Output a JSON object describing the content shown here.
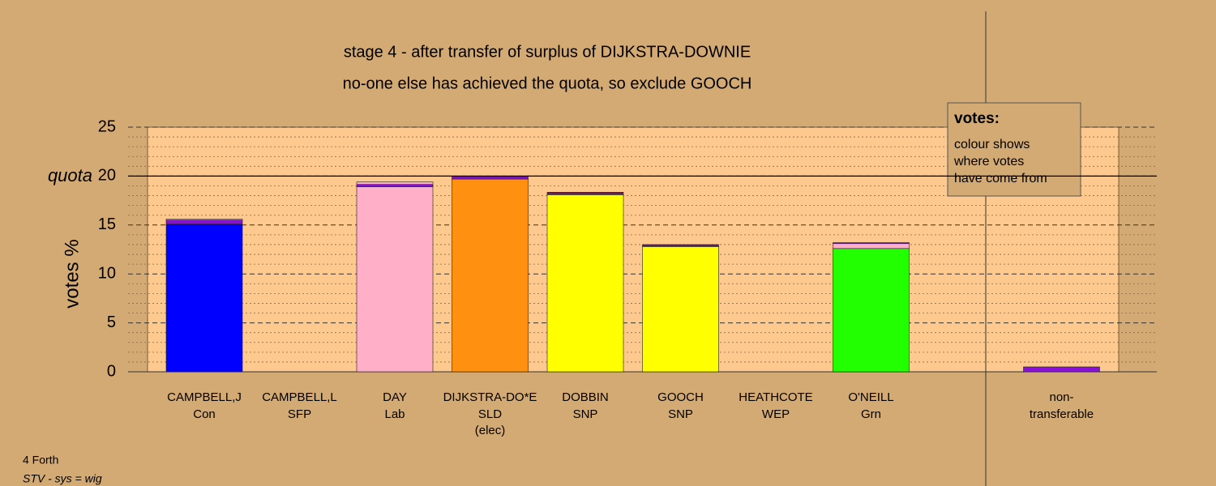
{
  "chart_data": {
    "type": "bar",
    "title": "stage 4 - after transfer of surplus of DIJKSTRA-DOWNIE",
    "subtitle": "no-one else has achieved the quota, so exclude GOOCH",
    "y_label": "votes %",
    "categories": [
      "CAMPBELL,J",
      "CAMPBELL,L",
      "DAY",
      "DIJKSTRA-DO*E",
      "DOBBIN",
      "GOOCH",
      "HEATHCOTE",
      "O'NEILL",
      "non-"
    ],
    "parties": [
      "Con",
      "SFP",
      "Lab",
      "SLD",
      "SNP",
      "SNP",
      "WEP",
      "Grn",
      "transferable"
    ],
    "notes": [
      null,
      null,
      null,
      "(elec)",
      null,
      null,
      null,
      null,
      null
    ],
    "stacks": [
      [
        {
          "color": "#0000ff",
          "value": 15.1
        },
        {
          "color": "#8a10d8",
          "value": 0.4
        },
        {
          "color": "#ffb0c8",
          "value": 0.1
        }
      ],
      [],
      [
        {
          "color": "#ffb0c8",
          "value": 18.9
        },
        {
          "color": "#8a10d8",
          "value": 0.25
        },
        {
          "color": "#ffb0c8",
          "value": 0.25
        }
      ],
      [
        {
          "color": "#ff9010",
          "value": 19.7
        },
        {
          "color": "#8a10d8",
          "value": 0.25
        }
      ],
      [
        {
          "color": "#ffff00",
          "value": 18.1
        },
        {
          "color": "#6a1a6a",
          "value": 0.25
        }
      ],
      [
        {
          "color": "#ffff00",
          "value": 12.8
        },
        {
          "color": "#6a1a6a",
          "value": 0.2
        }
      ],
      [],
      [
        {
          "color": "#22ff00",
          "value": 12.6
        },
        {
          "color": "#ffb0c8",
          "value": 0.5
        },
        {
          "color": "#8a10d8",
          "value": 0.1
        }
      ],
      [
        {
          "color": "#8a10d8",
          "value": 0.5
        }
      ]
    ],
    "ylim": [
      0,
      25
    ],
    "yticks": [
      0,
      5,
      10,
      15,
      20,
      25
    ],
    "minor_yticks": [
      1,
      2,
      3,
      4,
      6,
      7,
      8,
      9,
      11,
      12,
      13,
      14,
      16,
      17,
      18,
      19,
      21,
      22,
      23,
      24
    ],
    "quota": {
      "value": 20,
      "label": "quota"
    },
    "legend": {
      "title": "votes:",
      "lines": [
        "colour shows",
        "where votes",
        "have come from"
      ]
    },
    "footer": [
      "4 Forth",
      "STV - sys = wig"
    ]
  }
}
